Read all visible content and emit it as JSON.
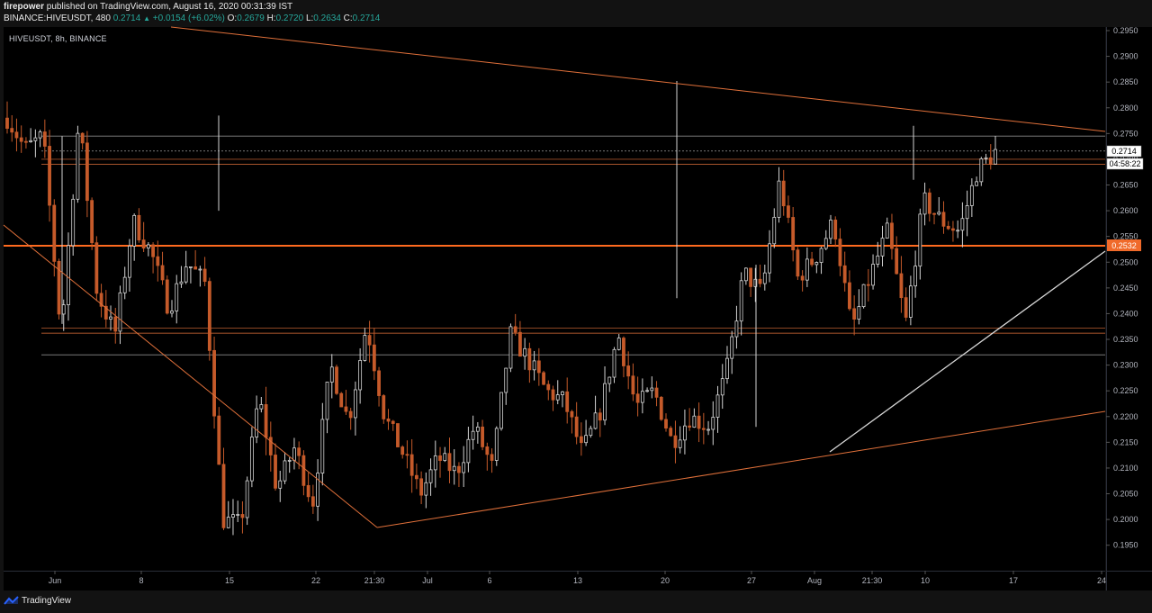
{
  "header": {
    "publisher": "firepower",
    "published_text": "published on TradingView.com, August 16, 2020 00:31:39 IST",
    "quote": {
      "symbol": "BINANCE:HIVEUSDT, 480",
      "last": "0.2714",
      "change": "+0.0154 (+6.02%)",
      "o_label": "O:",
      "o": "0.2679",
      "h_label": "H:",
      "h": "0.2720",
      "l_label": "L:",
      "l": "0.2634",
      "c_label": "C:",
      "c": "0.2714"
    }
  },
  "chart": {
    "symbol_label": "HIVEUSDT, 8h, BINANCE",
    "price_ticks": [
      "0.2950",
      "0.2900",
      "0.2850",
      "0.2800",
      "0.2750",
      "0.2700",
      "0.2650",
      "0.2600",
      "0.2550",
      "0.2500",
      "0.2450",
      "0.2400",
      "0.2350",
      "0.2300",
      "0.2250",
      "0.2200",
      "0.2150",
      "0.2100",
      "0.2050",
      "0.2000",
      "0.1950"
    ],
    "last_price_tag": "0.2714",
    "countdown_tag": "04:58:22",
    "level_tag": "0.2532",
    "time_ticks": [
      "Jun",
      "8",
      "15",
      "22",
      "21:30",
      "Jul",
      "6",
      "13",
      "20",
      "27",
      "Aug",
      "21:30",
      "10",
      "17",
      "24"
    ]
  },
  "chart_data": {
    "type": "candlestick",
    "symbol": "HIVEUSDT",
    "interval": "8h",
    "exchange": "BINANCE",
    "ylim": [
      0.192,
      0.296
    ],
    "horizontal_levels": [
      0.2745,
      0.2716,
      0.27,
      0.269,
      0.2532,
      0.2372,
      0.2362,
      0.232
    ],
    "swing_points": [
      0.278,
      0.272,
      0.2745,
      0.236,
      0.278,
      0.244,
      0.236,
      0.258,
      0.252,
      0.241,
      0.25,
      0.246,
      0.2,
      0.199,
      0.224,
      0.206,
      0.214,
      0.203,
      0.23,
      0.219,
      0.238,
      0.22,
      0.213,
      0.205,
      0.212,
      0.209,
      0.218,
      0.21,
      0.236,
      0.231,
      0.225,
      0.223,
      0.213,
      0.221,
      0.236,
      0.222,
      0.225,
      0.215,
      0.22,
      0.218,
      0.228,
      0.248,
      0.244,
      0.266,
      0.247,
      0.251,
      0.258,
      0.237,
      0.247,
      0.256,
      0.238,
      0.262,
      0.258,
      0.256,
      0.268,
      0.2714
    ]
  },
  "footer": {
    "brand": "TradingView"
  }
}
